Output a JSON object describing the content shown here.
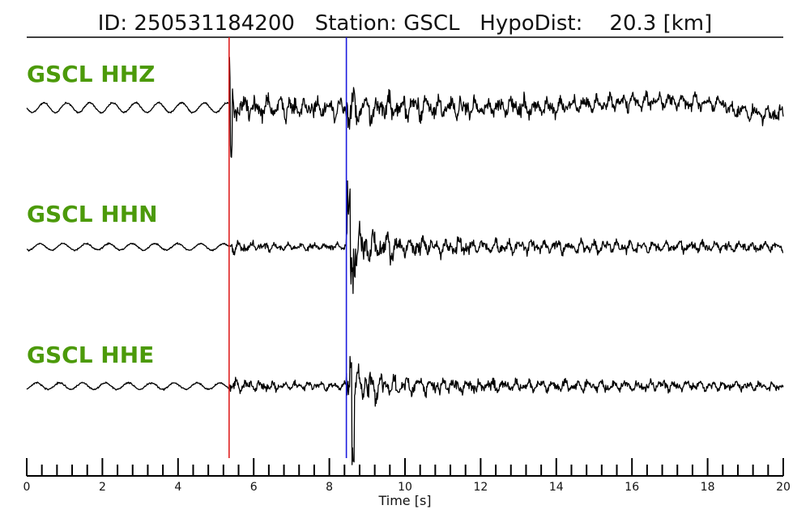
{
  "colors": {
    "channel_label": "#4c9a0a",
    "p_pick": "#e02020",
    "s_pick": "#1a1adf",
    "trace": "#000000"
  },
  "chart_data": {
    "type": "line",
    "title": "ID: 250531184200   Station: GSCL   HypoDist:    20.3 [km]",
    "xlabel": "Time [s]",
    "ylabel": "",
    "xlim": [
      0,
      20
    ],
    "x_major_ticks": [
      0,
      2,
      4,
      6,
      8,
      10,
      12,
      14,
      16,
      18,
      20
    ],
    "x_tick_labels": [
      "0",
      "2",
      "4",
      "6",
      "8",
      "10",
      "12",
      "14",
      "16",
      "18",
      "20"
    ],
    "x_minor_step": 0.4,
    "grid": false,
    "picks": [
      {
        "phase": "P",
        "time": 5.35,
        "color": "#e02020"
      },
      {
        "phase": "S",
        "time": 8.45,
        "color": "#1a1adf"
      }
    ],
    "series": [
      {
        "name": "GSCL HHZ"
      },
      {
        "name": "GSCL HHN"
      },
      {
        "name": "GSCL HHE"
      }
    ]
  }
}
